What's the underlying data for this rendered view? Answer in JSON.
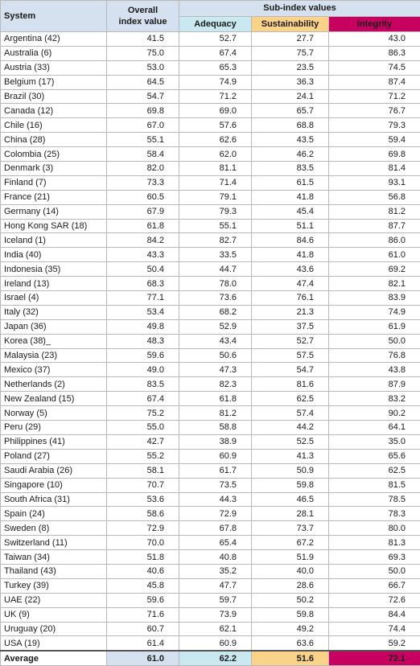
{
  "headers": {
    "system": "System",
    "overall_line1": "Overall",
    "overall_line2": "index value",
    "subindex": "Sub-index values",
    "adequacy": "Adequacy",
    "sustainability": "Sustainability",
    "integrity": "Integrity"
  },
  "colors": {
    "header_blue": "#d5e1ee",
    "adequacy": "#c9e8ef",
    "sustainability": "#fbd28a",
    "integrity": "#c8005f"
  },
  "rows": [
    {
      "system": "Argentina (42)",
      "overall": "41.5",
      "adequacy": "52.7",
      "sustainability": "27.7",
      "integrity": "43.0"
    },
    {
      "system": "Australia (6)",
      "overall": "75.0",
      "adequacy": "67.4",
      "sustainability": "75.7",
      "integrity": "86.3"
    },
    {
      "system": "Austria (33)",
      "overall": "53.0",
      "adequacy": "65.3",
      "sustainability": "23.5",
      "integrity": "74.5"
    },
    {
      "system": "Belgium (17)",
      "overall": "64.5",
      "adequacy": "74.9",
      "sustainability": "36.3",
      "integrity": "87.4"
    },
    {
      "system": "Brazil (30)",
      "overall": "54.7",
      "adequacy": "71.2",
      "sustainability": "24.1",
      "integrity": "71.2"
    },
    {
      "system": "Canada (12)",
      "overall": "69.8",
      "adequacy": "69.0",
      "sustainability": "65.7",
      "integrity": "76.7"
    },
    {
      "system": "Chile (16)",
      "overall": "67.0",
      "adequacy": "57.6",
      "sustainability": "68.8",
      "integrity": "79.3"
    },
    {
      "system": "China (28)",
      "overall": "55.1",
      "adequacy": "62.6",
      "sustainability": "43.5",
      "integrity": "59.4"
    },
    {
      "system": "Colombia (25)",
      "overall": "58.4",
      "adequacy": "62.0",
      "sustainability": "46.2",
      "integrity": "69.8"
    },
    {
      "system": "Denmark (3)",
      "overall": "82.0",
      "adequacy": "81.1",
      "sustainability": "83.5",
      "integrity": "81.4"
    },
    {
      "system": "Finland (7)",
      "overall": "73.3",
      "adequacy": "71.4",
      "sustainability": "61.5",
      "integrity": "93.1"
    },
    {
      "system": "France (21)",
      "overall": "60.5",
      "adequacy": "79.1",
      "sustainability": "41.8",
      "integrity": "56.8"
    },
    {
      "system": "Germany (14)",
      "overall": "67.9",
      "adequacy": "79.3",
      "sustainability": "45.4",
      "integrity": "81.2"
    },
    {
      "system": "Hong Kong SAR (18)",
      "overall": "61.8",
      "adequacy": "55.1",
      "sustainability": "51.1",
      "integrity": "87.7"
    },
    {
      "system": "Iceland (1)",
      "overall": "84.2",
      "adequacy": "82.7",
      "sustainability": "84.6",
      "integrity": "86.0"
    },
    {
      "system": "India (40)",
      "overall": "43.3",
      "adequacy": "33.5",
      "sustainability": "41.8",
      "integrity": "61.0"
    },
    {
      "system": "Indonesia (35)",
      "overall": "50.4",
      "adequacy": "44.7",
      "sustainability": "43.6",
      "integrity": "69.2"
    },
    {
      "system": "Ireland (13)",
      "overall": "68.3",
      "adequacy": "78.0",
      "sustainability": "47.4",
      "integrity": "82.1"
    },
    {
      "system": "Israel (4)",
      "overall": "77.1",
      "adequacy": "73.6",
      "sustainability": "76.1",
      "integrity": "83.9"
    },
    {
      "system": "Italy (32)",
      "overall": "53.4",
      "adequacy": "68.2",
      "sustainability": "21.3",
      "integrity": "74.9"
    },
    {
      "system": "Japan (36)",
      "overall": "49.8",
      "adequacy": "52.9",
      "sustainability": "37.5",
      "integrity": "61.9"
    },
    {
      "system": "Korea (38)_",
      "overall": "48.3",
      "adequacy": "43.4",
      "sustainability": "52.7",
      "integrity": "50.0"
    },
    {
      "system": "Malaysia (23)",
      "overall": "59.6",
      "adequacy": "50.6",
      "sustainability": "57.5",
      "integrity": "76.8"
    },
    {
      "system": "Mexico (37)",
      "overall": "49.0",
      "adequacy": "47.3",
      "sustainability": "54.7",
      "integrity": "43.8"
    },
    {
      "system": "Netherlands (2)",
      "overall": "83.5",
      "adequacy": "82.3",
      "sustainability": "81.6",
      "integrity": "87.9"
    },
    {
      "system": "New Zealand (15)",
      "overall": "67.4",
      "adequacy": "61.8",
      "sustainability": "62.5",
      "integrity": "83.2"
    },
    {
      "system": "Norway (5)",
      "overall": "75.2",
      "adequacy": "81.2",
      "sustainability": "57.4",
      "integrity": "90.2"
    },
    {
      "system": "Peru (29)",
      "overall": "55.0",
      "adequacy": "58.8",
      "sustainability": "44.2",
      "integrity": "64.1"
    },
    {
      "system": "Philippines (41)",
      "overall": "42.7",
      "adequacy": "38.9",
      "sustainability": "52.5",
      "integrity": "35.0"
    },
    {
      "system": "Poland (27)",
      "overall": "55.2",
      "adequacy": "60.9",
      "sustainability": "41.3",
      "integrity": "65.6"
    },
    {
      "system": "Saudi Arabia (26)",
      "overall": "58.1",
      "adequacy": "61.7",
      "sustainability": "50.9",
      "integrity": "62.5"
    },
    {
      "system": "Singapore (10)",
      "overall": "70.7",
      "adequacy": "73.5",
      "sustainability": "59.8",
      "integrity": "81.5"
    },
    {
      "system": "South Africa (31)",
      "overall": "53.6",
      "adequacy": "44.3",
      "sustainability": "46.5",
      "integrity": "78.5"
    },
    {
      "system": "Spain (24)",
      "overall": "58.6",
      "adequacy": "72.9",
      "sustainability": "28.1",
      "integrity": "78.3"
    },
    {
      "system": "Sweden (8)",
      "overall": "72.9",
      "adequacy": "67.8",
      "sustainability": "73.7",
      "integrity": "80.0"
    },
    {
      "system": "Switzerland (11)",
      "overall": "70.0",
      "adequacy": "65.4",
      "sustainability": "67.2",
      "integrity": "81.3"
    },
    {
      "system": "Taiwan (34)",
      "overall": "51.8",
      "adequacy": "40.8",
      "sustainability": "51.9",
      "integrity": "69.3"
    },
    {
      "system": "Thailand (43)",
      "overall": "40.6",
      "adequacy": "35.2",
      "sustainability": "40.0",
      "integrity": "50.0"
    },
    {
      "system": "Turkey (39)",
      "overall": "45.8",
      "adequacy": "47.7",
      "sustainability": "28.6",
      "integrity": "66.7"
    },
    {
      "system": "UAE (22)",
      "overall": "59.6",
      "adequacy": "59.7",
      "sustainability": "50.2",
      "integrity": "72.6"
    },
    {
      "system": "UK (9)",
      "overall": "71.6",
      "adequacy": "73.9",
      "sustainability": "59.8",
      "integrity": "84.4"
    },
    {
      "system": "Uruguay (20)",
      "overall": "60.7",
      "adequacy": "62.1",
      "sustainability": "49.2",
      "integrity": "74.4"
    },
    {
      "system": "USA (19)",
      "overall": "61.4",
      "adequacy": "60.9",
      "sustainability": "63.6",
      "integrity": "59.2"
    }
  ],
  "average": {
    "label": "Average",
    "overall": "61.0",
    "adequacy": "62.2",
    "sustainability": "51.6",
    "integrity": "72.1"
  }
}
